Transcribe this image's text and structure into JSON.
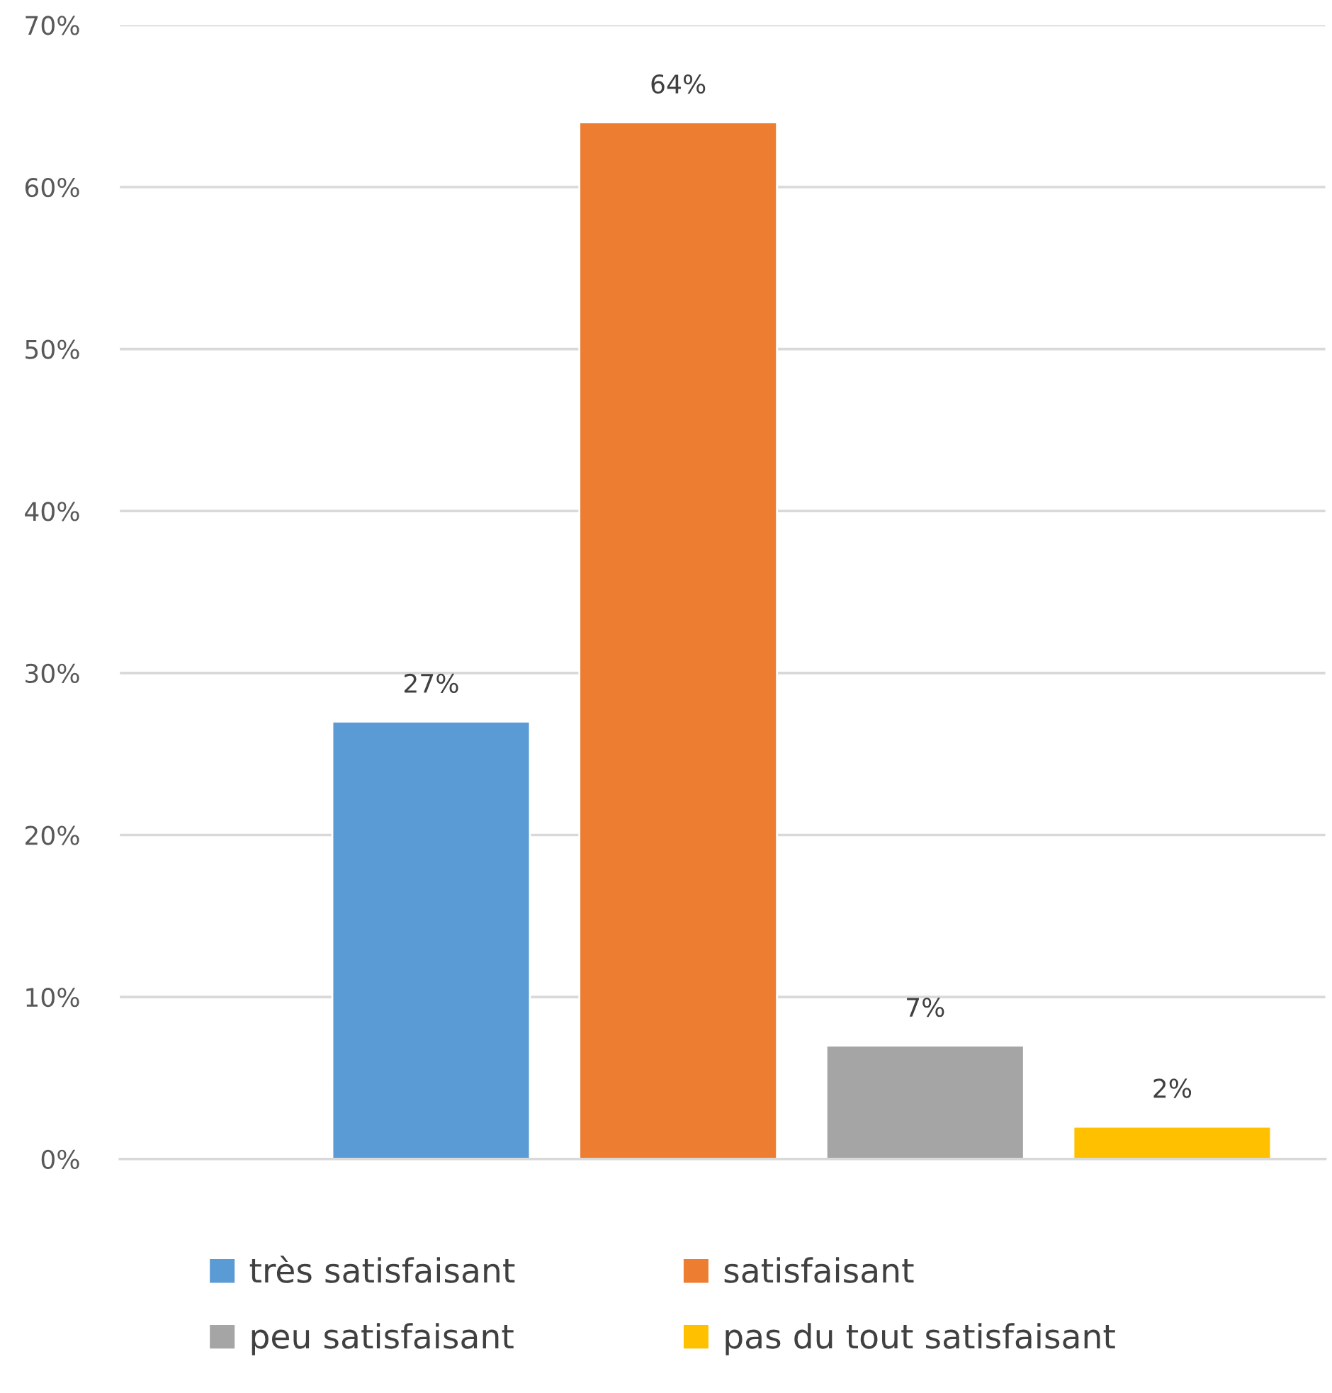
{
  "chart_data": {
    "type": "bar",
    "categories": [
      null,
      null,
      null,
      null,
      null
    ],
    "series": [
      {
        "name": "très satisfaisant",
        "color": "#5b9bd5",
        "values": [
          null,
          27,
          null,
          null,
          null
        ],
        "value_labels": [
          null,
          "27%",
          null,
          null,
          null
        ]
      },
      {
        "name": "satisfaisant",
        "color": "#ed7d31",
        "values": [
          null,
          null,
          64,
          null,
          null
        ],
        "value_labels": [
          null,
          null,
          "64%",
          null,
          null
        ]
      },
      {
        "name": "peu satisfaisant",
        "color": "#a5a5a5",
        "values": [
          null,
          null,
          null,
          7,
          null
        ],
        "value_labels": [
          null,
          null,
          null,
          "7%",
          null
        ]
      },
      {
        "name": "pas du tout satisfaisant",
        "color": "#ffc000",
        "values": [
          null,
          null,
          null,
          null,
          2
        ],
        "value_labels": [
          null,
          null,
          null,
          null,
          "2%"
        ]
      }
    ],
    "ylim": [
      0,
      70
    ],
    "yticks": [
      {
        "value": 0,
        "label": "0%"
      },
      {
        "value": 10,
        "label": "10%"
      },
      {
        "value": 20,
        "label": "20%"
      },
      {
        "value": 30,
        "label": "30%"
      },
      {
        "value": 40,
        "label": "40%"
      },
      {
        "value": 50,
        "label": "50%"
      },
      {
        "value": 60,
        "label": "60%"
      },
      {
        "value": 70,
        "label": "70%"
      }
    ],
    "grid": "y",
    "legend": "bottom",
    "tick_labels": "y"
  }
}
